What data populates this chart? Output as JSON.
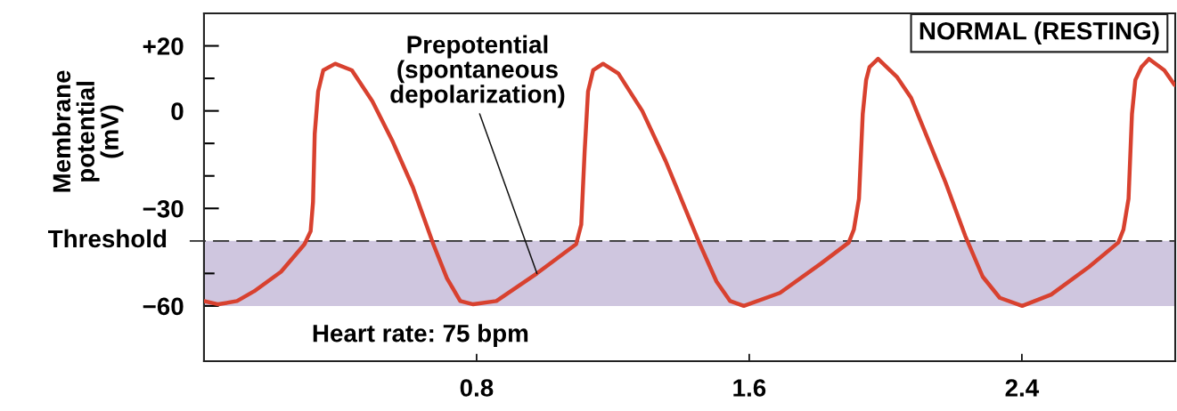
{
  "chart_data": {
    "type": "line",
    "title": "NORMAL (RESTING)",
    "ylabel": "Membrane\npotential\n(mV)",
    "series": [
      {
        "color": "#d8412f",
        "x": [
          0.0,
          0.042,
          0.097,
          0.147,
          0.226,
          0.295,
          0.313,
          0.32,
          0.325,
          0.335,
          0.35,
          0.385,
          0.434,
          0.494,
          0.554,
          0.613,
          0.673,
          0.713,
          0.752,
          0.79,
          0.858,
          0.977,
          1.092,
          1.107,
          1.117,
          1.127,
          1.142,
          1.171,
          1.216,
          1.286,
          1.355,
          1.455,
          1.504,
          1.544,
          1.584,
          1.69,
          1.81,
          1.892,
          1.907,
          1.922,
          1.933,
          1.943,
          1.953,
          1.978,
          2.033,
          2.075,
          2.114,
          2.176,
          2.234,
          2.285,
          2.335,
          2.401,
          2.486,
          2.597,
          2.683,
          2.698,
          2.713,
          2.723,
          2.733,
          2.751,
          2.773,
          2.818,
          2.848
        ],
        "values": [
          -58.5,
          -59.5,
          -58.5,
          -55.5,
          -49.5,
          -41,
          -37,
          -28,
          -7,
          6,
          12.5,
          14.5,
          12.5,
          3,
          -9.5,
          -23.5,
          -41,
          -51.5,
          -58.5,
          -59.5,
          -58.5,
          -50,
          -41,
          -35,
          -12.5,
          6,
          12.5,
          14.5,
          11.5,
          0,
          -15.5,
          -41,
          -52.5,
          -58.5,
          -60,
          -56,
          -47,
          -40.5,
          -36.5,
          -27,
          -1,
          9.5,
          13.5,
          16,
          10.5,
          4,
          -6,
          -22,
          -38.5,
          -51,
          -57.5,
          -60,
          -56.5,
          -48,
          -40.5,
          -36.5,
          -27,
          -1,
          9.5,
          13.5,
          16,
          12.5,
          8
        ]
      }
    ],
    "xlim": [
      0,
      2.85
    ],
    "xticks": [
      0.8,
      1.6,
      2.4
    ],
    "ylim": [
      -77,
      30
    ],
    "yticks": [
      {
        "value": 20,
        "label": "+20"
      },
      {
        "value": 10,
        "label": null
      },
      0,
      {
        "value": -10,
        "label": null
      },
      {
        "value": -20,
        "label": null
      },
      {
        "value": -30,
        "label": "−30"
      },
      {
        "value": -50,
        "label": null
      },
      {
        "value": -60,
        "label": "−60"
      }
    ],
    "ref_lines": [
      {
        "axis": "y",
        "value": -40,
        "label": "Threshold",
        "color": "#2b2b2b",
        "line_style": "dashed"
      }
    ],
    "bands": [
      {
        "axis": "y",
        "from": -60,
        "to": -40,
        "color": "#cfc6df"
      }
    ],
    "annotations": [
      "Heart rate: 75 bpm",
      {
        "text": "Prepotential\n(spontaneous\ndepolarization)",
        "x": 0.977,
        "y": -50
      }
    ]
  }
}
